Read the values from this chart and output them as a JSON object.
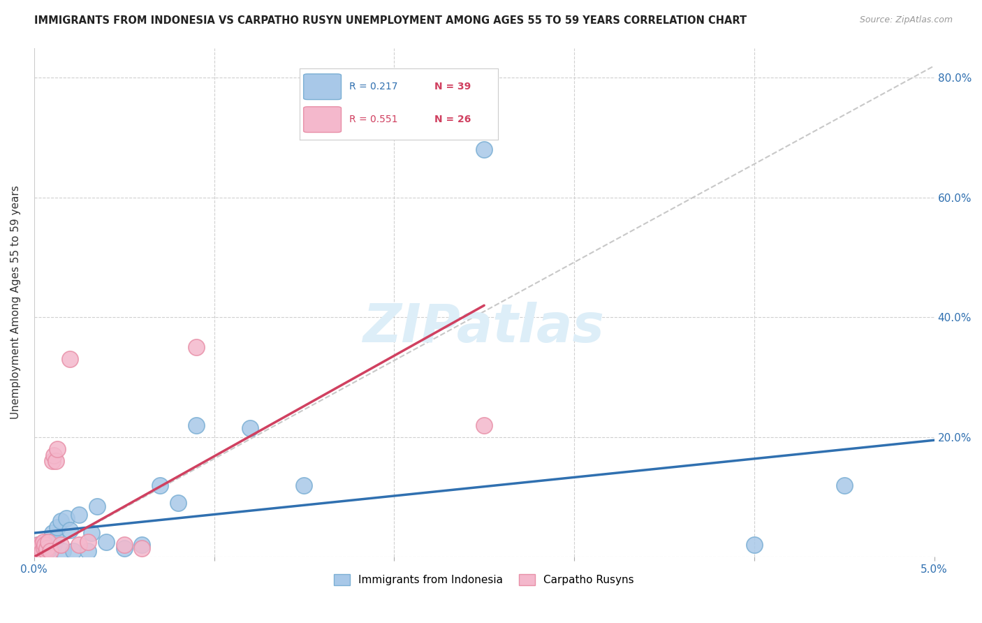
{
  "title": "IMMIGRANTS FROM INDONESIA VS CARPATHO RUSYN UNEMPLOYMENT AMONG AGES 55 TO 59 YEARS CORRELATION CHART",
  "source": "Source: ZipAtlas.com",
  "ylabel": "Unemployment Among Ages 55 to 59 years",
  "xlim": [
    0.0,
    0.05
  ],
  "ylim": [
    0.0,
    0.85
  ],
  "xticks": [
    0.0,
    0.01,
    0.02,
    0.03,
    0.04,
    0.05
  ],
  "xticklabels": [
    "0.0%",
    "",
    "",
    "",
    "",
    "5.0%"
  ],
  "yticks": [
    0.0,
    0.2,
    0.4,
    0.6,
    0.8
  ],
  "yticklabels": [
    "",
    "20.0%",
    "40.0%",
    "60.0%",
    "80.0%"
  ],
  "blue_color": "#a8c8e8",
  "blue_edge_color": "#7bafd4",
  "pink_color": "#f4b8cc",
  "pink_edge_color": "#e890a8",
  "blue_line_color": "#3070b0",
  "pink_line_color": "#d04060",
  "dashed_line_color": "#c8c8c8",
  "watermark_color": "#ddeef8",
  "blue_scatter_x": [
    0.00015,
    0.0002,
    0.00025,
    0.0003,
    0.00035,
    0.0004,
    0.00045,
    0.0005,
    0.00055,
    0.0006,
    0.00065,
    0.0007,
    0.00075,
    0.0008,
    0.0009,
    0.001,
    0.0011,
    0.0012,
    0.0013,
    0.0015,
    0.0016,
    0.0018,
    0.002,
    0.0022,
    0.0025,
    0.003,
    0.0032,
    0.0035,
    0.004,
    0.005,
    0.006,
    0.007,
    0.008,
    0.009,
    0.012,
    0.015,
    0.025,
    0.04,
    0.045
  ],
  "blue_scatter_y": [
    0.015,
    0.02,
    0.01,
    0.018,
    0.012,
    0.022,
    0.01,
    0.015,
    0.02,
    0.018,
    0.012,
    0.025,
    0.01,
    0.02,
    0.015,
    0.04,
    0.02,
    0.03,
    0.05,
    0.06,
    0.01,
    0.065,
    0.045,
    0.01,
    0.07,
    0.01,
    0.04,
    0.085,
    0.025,
    0.015,
    0.02,
    0.12,
    0.09,
    0.22,
    0.215,
    0.12,
    0.68,
    0.02,
    0.12
  ],
  "pink_scatter_x": [
    0.00015,
    0.0002,
    0.00025,
    0.0003,
    0.00035,
    0.0004,
    0.00045,
    0.0005,
    0.00055,
    0.0006,
    0.00065,
    0.0007,
    0.0008,
    0.0009,
    0.001,
    0.0011,
    0.0012,
    0.0013,
    0.0015,
    0.002,
    0.0025,
    0.003,
    0.005,
    0.006,
    0.009,
    0.025
  ],
  "pink_scatter_y": [
    0.015,
    0.01,
    0.02,
    0.01,
    0.015,
    0.02,
    0.01,
    0.025,
    0.015,
    0.02,
    0.01,
    0.015,
    0.025,
    0.01,
    0.16,
    0.17,
    0.16,
    0.18,
    0.02,
    0.33,
    0.02,
    0.025,
    0.02,
    0.015,
    0.35,
    0.22
  ],
  "blue_line_x0": 0.0,
  "blue_line_y0": 0.04,
  "blue_line_x1": 0.05,
  "blue_line_y1": 0.195,
  "pink_line_x0": 0.0,
  "pink_line_y0": 0.0,
  "pink_line_x1": 0.025,
  "pink_line_y1": 0.42,
  "dash_line_x0": 0.0,
  "dash_line_y0": 0.0,
  "dash_line_x1": 0.05,
  "dash_line_y1": 0.82
}
